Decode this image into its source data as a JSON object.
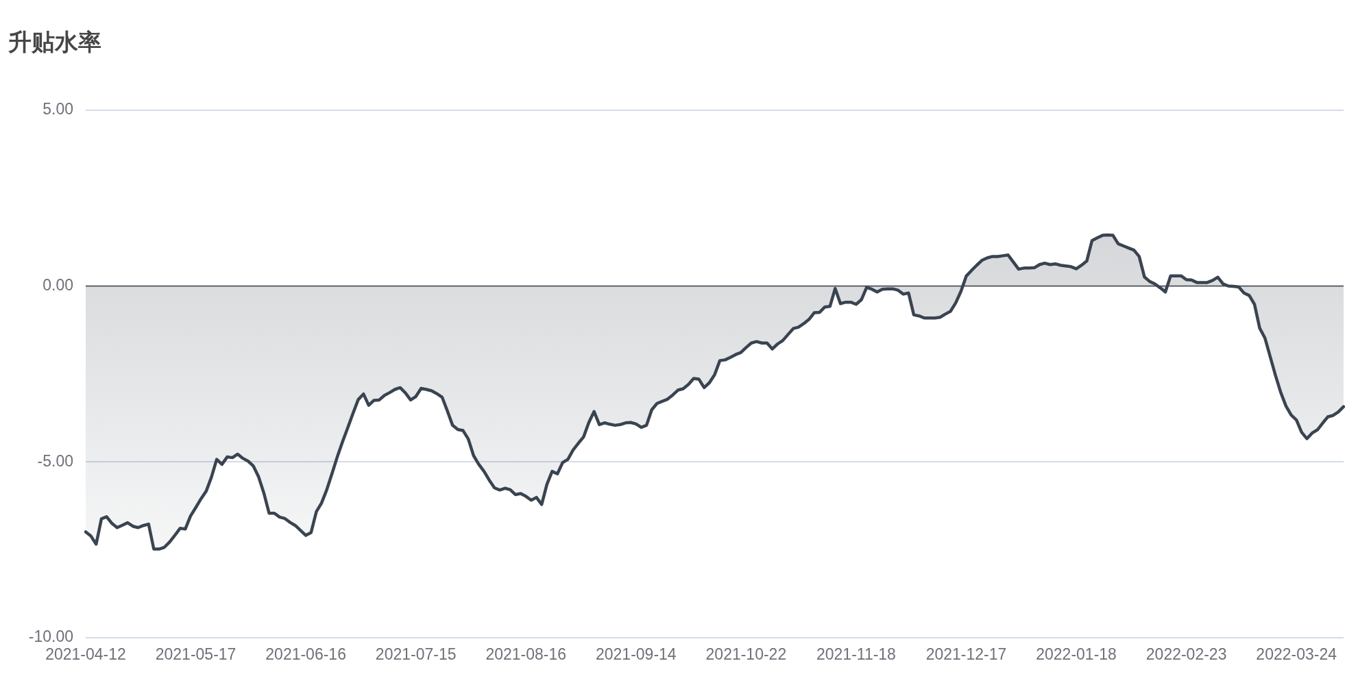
{
  "chart_data": {
    "type": "area",
    "title": "升贴水率",
    "categories": [
      "2021-04-12",
      null,
      null,
      null,
      null,
      null,
      null,
      null,
      null,
      null,
      null,
      null,
      null,
      null,
      null,
      null,
      null,
      null,
      null,
      null,
      null,
      "2021-05-17",
      null,
      null,
      null,
      null,
      null,
      null,
      null,
      null,
      null,
      null,
      null,
      null,
      null,
      null,
      null,
      null,
      null,
      null,
      null,
      null,
      "2021-06-16",
      null,
      null,
      null,
      null,
      null,
      null,
      null,
      null,
      null,
      null,
      null,
      null,
      null,
      null,
      null,
      null,
      null,
      null,
      null,
      null,
      "2021-07-15",
      null,
      null,
      null,
      null,
      null,
      null,
      null,
      null,
      null,
      null,
      null,
      null,
      null,
      null,
      null,
      null,
      null,
      null,
      null,
      null,
      "2021-08-16",
      null,
      null,
      null,
      null,
      null,
      null,
      null,
      null,
      null,
      null,
      null,
      null,
      null,
      null,
      null,
      null,
      null,
      null,
      null,
      null,
      "2021-09-14",
      null,
      null,
      null,
      null,
      null,
      null,
      null,
      null,
      null,
      null,
      null,
      null,
      null,
      null,
      null,
      null,
      null,
      null,
      null,
      null,
      "2021-10-22",
      null,
      null,
      null,
      null,
      null,
      null,
      null,
      null,
      null,
      null,
      null,
      null,
      null,
      null,
      null,
      null,
      null,
      null,
      null,
      null,
      "2021-11-18",
      null,
      null,
      null,
      null,
      null,
      null,
      null,
      null,
      null,
      null,
      null,
      null,
      null,
      null,
      null,
      null,
      null,
      null,
      null,
      null,
      "2021-12-17",
      null,
      null,
      null,
      null,
      null,
      null,
      null,
      null,
      null,
      null,
      null,
      null,
      null,
      null,
      null,
      null,
      null,
      null,
      null,
      null,
      "2022-01-18",
      null,
      null,
      null,
      null,
      null,
      null,
      null,
      null,
      null,
      null,
      null,
      null,
      null,
      null,
      null,
      null,
      null,
      null,
      null,
      null,
      "2022-02-23",
      null,
      null,
      null,
      null,
      null,
      null,
      null,
      null,
      null,
      null,
      null,
      null,
      null,
      null,
      null,
      null,
      null,
      null,
      null,
      null,
      "2022-03-24",
      null,
      null,
      null,
      null,
      null,
      null,
      null,
      null,
      null
    ],
    "values": [
      -6.99,
      -7.11,
      -7.34,
      -6.62,
      -6.56,
      -6.75,
      -6.87,
      -6.8,
      -6.73,
      -6.83,
      -6.87,
      -6.81,
      -6.77,
      -7.48,
      -7.48,
      -7.43,
      -7.28,
      -7.09,
      -6.89,
      -6.91,
      -6.54,
      -6.3,
      -6.05,
      -5.83,
      -5.43,
      -4.93,
      -5.07,
      -4.86,
      -4.88,
      -4.78,
      -4.9,
      -4.98,
      -5.12,
      -5.43,
      -5.89,
      -6.46,
      -6.46,
      -6.57,
      -6.61,
      -6.72,
      -6.81,
      -6.95,
      -7.09,
      -7.01,
      -6.42,
      -6.17,
      -5.79,
      -5.33,
      -4.86,
      -4.43,
      -4.03,
      -3.62,
      -3.23,
      -3.07,
      -3.39,
      -3.25,
      -3.24,
      -3.11,
      -3.03,
      -2.94,
      -2.89,
      -3.04,
      -3.24,
      -3.14,
      -2.91,
      -2.94,
      -2.98,
      -3.06,
      -3.16,
      -3.55,
      -3.96,
      -4.08,
      -4.11,
      -4.35,
      -4.82,
      -5.07,
      -5.27,
      -5.52,
      -5.74,
      -5.8,
      -5.75,
      -5.79,
      -5.93,
      -5.9,
      -5.98,
      -6.09,
      -6.01,
      -6.21,
      -5.64,
      -5.27,
      -5.34,
      -5.02,
      -4.93,
      -4.66,
      -4.47,
      -4.29,
      -3.88,
      -3.57,
      -3.94,
      -3.89,
      -3.93,
      -3.96,
      -3.94,
      -3.89,
      -3.88,
      -3.92,
      -4.02,
      -3.96,
      -3.52,
      -3.34,
      -3.28,
      -3.22,
      -3.1,
      -2.96,
      -2.92,
      -2.8,
      -2.63,
      -2.65,
      -2.89,
      -2.75,
      -2.52,
      -2.12,
      -2.1,
      -2.03,
      -1.95,
      -1.89,
      -1.75,
      -1.62,
      -1.58,
      -1.62,
      -1.62,
      -1.79,
      -1.65,
      -1.55,
      -1.38,
      -1.21,
      -1.17,
      -1.07,
      -0.95,
      -0.76,
      -0.75,
      -0.6,
      -0.58,
      -0.07,
      -0.5,
      -0.46,
      -0.46,
      -0.52,
      -0.39,
      -0.04,
      -0.09,
      -0.17,
      -0.09,
      -0.08,
      -0.08,
      -0.12,
      -0.23,
      -0.2,
      -0.82,
      -0.85,
      -0.91,
      -0.91,
      -0.91,
      -0.89,
      -0.8,
      -0.72,
      -0.48,
      -0.15,
      0.28,
      0.44,
      0.59,
      0.73,
      0.8,
      0.84,
      0.84,
      0.86,
      0.88,
      0.68,
      0.48,
      0.51,
      0.51,
      0.52,
      0.61,
      0.65,
      0.61,
      0.63,
      0.59,
      0.57,
      0.55,
      0.49,
      0.59,
      0.71,
      1.29,
      1.37,
      1.44,
      1.45,
      1.44,
      1.2,
      1.14,
      1.08,
      1.02,
      0.84,
      0.26,
      0.13,
      0.06,
      -0.05,
      -0.17,
      0.29,
      0.29,
      0.29,
      0.18,
      0.17,
      0.1,
      0.1,
      0.1,
      0.16,
      0.25,
      0.06,
      0.0,
      -0.01,
      -0.03,
      -0.2,
      -0.27,
      -0.52,
      -1.2,
      -1.48,
      -2.01,
      -2.54,
      -3.02,
      -3.41,
      -3.67,
      -3.81,
      -4.16,
      -4.34,
      -4.18,
      -4.09,
      -3.9,
      -3.72,
      -3.68,
      -3.58,
      -3.43
    ],
    "color": "#3a4450",
    "ylim": [
      -10,
      5
    ],
    "yticks": [
      {
        "value": -10,
        "label": "-10.00"
      },
      {
        "value": -5,
        "label": "-5.00"
      },
      {
        "value": 0,
        "label": "0.00"
      },
      {
        "value": 5,
        "label": "5.00"
      }
    ],
    "ref_lines": [
      {
        "axis": "y",
        "value": 0,
        "color": "#464646"
      }
    ],
    "grid": "y"
  }
}
